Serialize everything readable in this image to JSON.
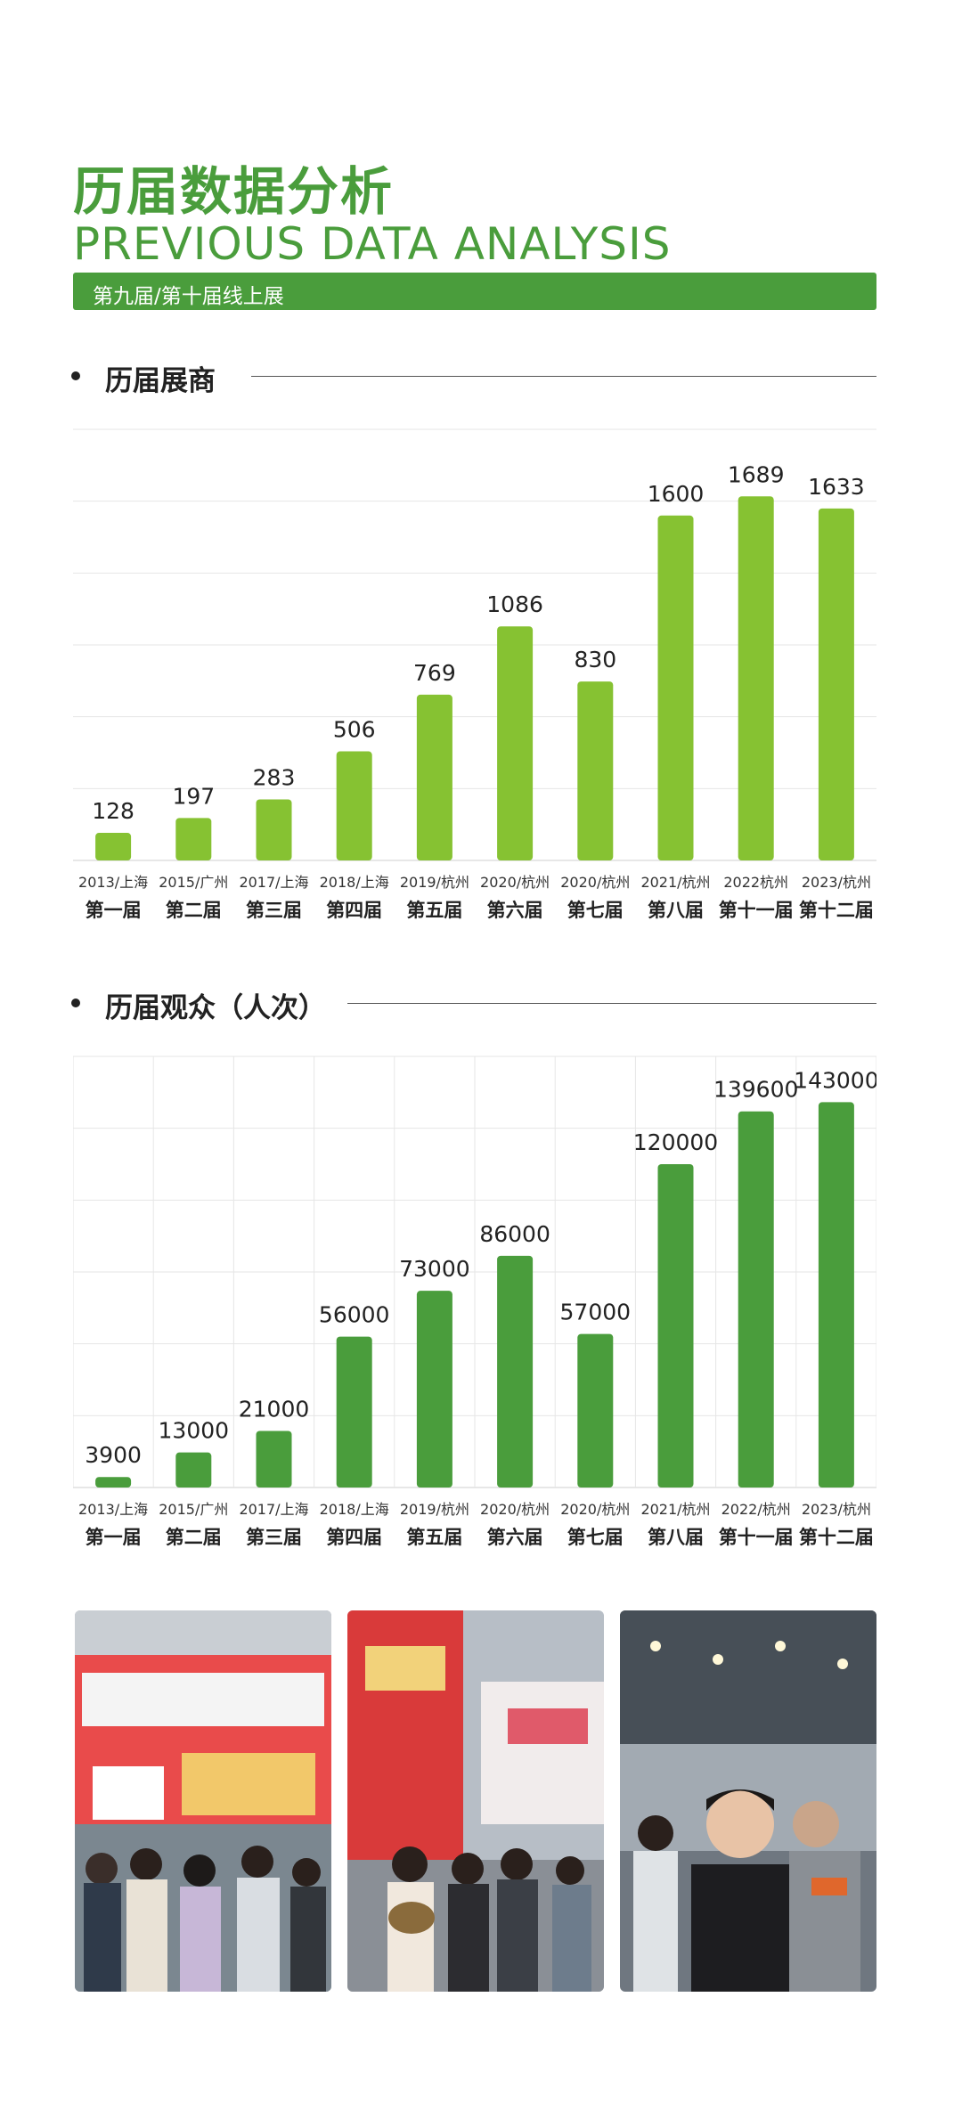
{
  "header": {
    "title_cn": "历届数据分析",
    "title_en": "PREVIOUS DATA ANALYSIS",
    "banner": "第九届/第十届线上展"
  },
  "sections": [
    {
      "label": "历届展商"
    },
    {
      "label": "历届观众（人次）"
    }
  ],
  "colors": {
    "brand_green": "#4a9d3c",
    "exhibitor_bar": "#86c232",
    "visitor_bar": "#4a9d3c"
  },
  "chart_data": [
    {
      "type": "bar",
      "title": "历届展商",
      "categories": [
        "2013/上海",
        "2015/广州",
        "2017/上海",
        "2018/上海",
        "2019/杭州",
        "2020/杭州",
        "2020/杭州",
        "2021/杭州",
        "2022杭州",
        "2023/杭州"
      ],
      "sessions": [
        "第一届",
        "第二届",
        "第三届",
        "第四届",
        "第五届",
        "第六届",
        "第七届",
        "第八届",
        "第十一届",
        "第十二届"
      ],
      "values": [
        128,
        197,
        283,
        506,
        769,
        1086,
        830,
        1600,
        1689,
        1633
      ],
      "ylim": [
        0,
        2000
      ],
      "grid": "horizontal",
      "bar_color": "#86c232"
    },
    {
      "type": "bar",
      "title": "历届观众（人次）",
      "categories": [
        "2013/上海",
        "2015/广州",
        "2017/上海",
        "2018/上海",
        "2019/杭州",
        "2020/杭州",
        "2020/杭州",
        "2021/杭州",
        "2022/杭州",
        "2023/杭州"
      ],
      "sessions": [
        "第一届",
        "第二届",
        "第三届",
        "第四届",
        "第五届",
        "第六届",
        "第七届",
        "第八届",
        "第十一届",
        "第十二届"
      ],
      "values": [
        3900,
        13000,
        21000,
        56000,
        73000,
        86000,
        57000,
        120000,
        139600,
        143000
      ],
      "ylim": [
        0,
        160000
      ],
      "grid": "both",
      "bar_color": "#4a9d3c"
    }
  ]
}
